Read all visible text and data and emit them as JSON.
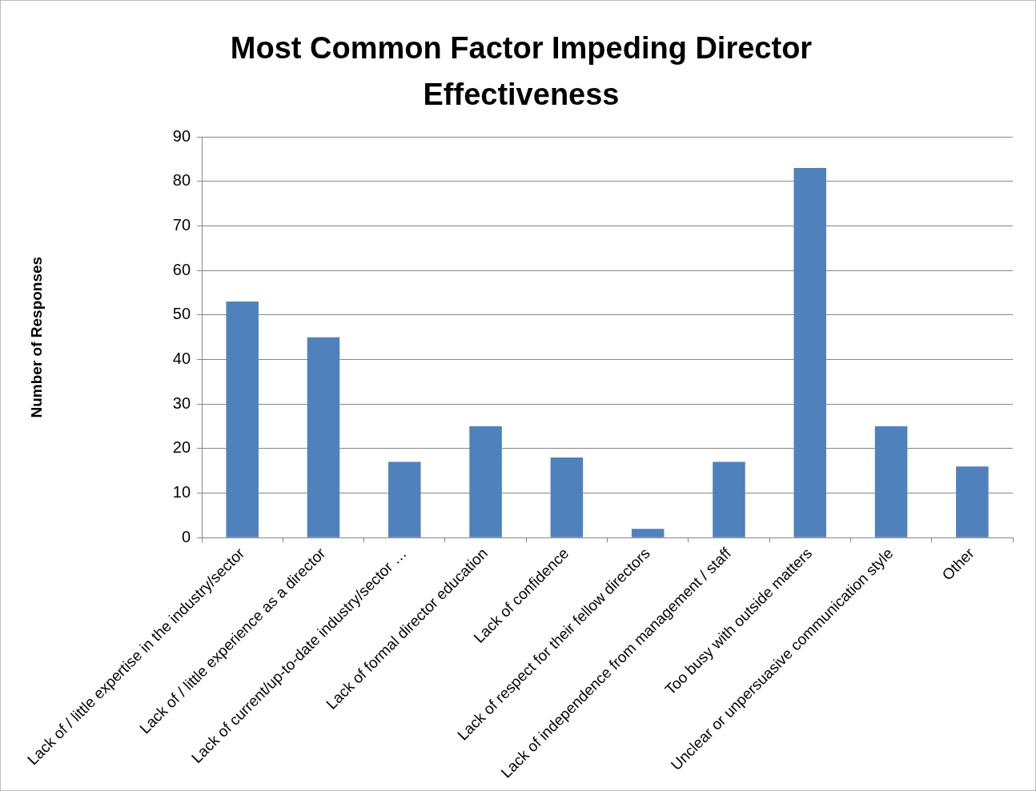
{
  "chart_data": {
    "type": "bar",
    "title": "Most Common Factor Impeding Director Effectiveness",
    "ylabel": "Number of Responses",
    "categories": [
      "Lack of / little expertise in the industry/sector",
      "Lack of / little experience as a director",
      "Lack of current/up-to-date industry/sector …",
      "Lack of formal director education",
      "Lack of confidence",
      "Lack of respect for their fellow directors",
      "Lack of independence from management / staff",
      "Too busy with outside matters",
      "Unclear or unpersuasive communication style",
      "Other"
    ],
    "values": [
      53,
      45,
      17,
      25,
      18,
      2,
      17,
      83,
      25,
      16
    ],
    "color": "#4f81bd",
    "ylim": [
      0,
      90
    ],
    "yticks": [
      0,
      10,
      20,
      30,
      40,
      50,
      60,
      70,
      80,
      90
    ],
    "grid": "y",
    "legend": false
  }
}
